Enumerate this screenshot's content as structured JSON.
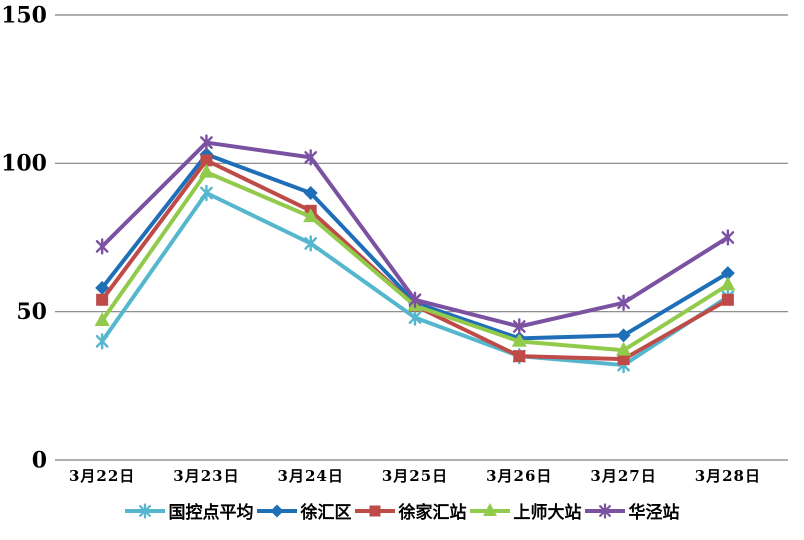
{
  "chart_data": {
    "type": "line",
    "title": "",
    "xlabel": "",
    "ylabel": "",
    "categories": [
      "3月22日",
      "3月23日",
      "3月24日",
      "3月25日",
      "3月26日",
      "3月27日",
      "3月28日"
    ],
    "series": [
      {
        "key": "national-control-avg",
        "name": "国控点平均",
        "color": "#55B7CE",
        "marker": "asterisk",
        "values": [
          40,
          90,
          73,
          48,
          35,
          32,
          55
        ]
      },
      {
        "key": "xuhui-district",
        "name": "徐汇区",
        "color": "#1F6FB8",
        "marker": "diamond",
        "values": [
          58,
          103,
          90,
          53,
          41,
          42,
          63
        ]
      },
      {
        "key": "xujiahui-station",
        "name": "徐家汇站",
        "color": "#BE4B48",
        "marker": "square",
        "values": [
          54,
          101,
          84,
          52,
          35,
          34,
          54
        ]
      },
      {
        "key": "shangshida-station",
        "name": "上师大站",
        "color": "#92CB4B",
        "marker": "triangle",
        "values": [
          47,
          97,
          82,
          52,
          40,
          37,
          59
        ]
      },
      {
        "key": "huajing-station",
        "name": "华泾站",
        "color": "#7B52A2",
        "marker": "asterisk",
        "values": [
          72,
          107,
          102,
          54,
          45,
          53,
          75
        ]
      }
    ],
    "y_axis": {
      "min": 0,
      "max": 150,
      "ticks": [
        0,
        50,
        100,
        150
      ]
    },
    "grid": true,
    "gridline_color": "#808080",
    "text_color": "#000000",
    "legend_position": "bottom"
  }
}
